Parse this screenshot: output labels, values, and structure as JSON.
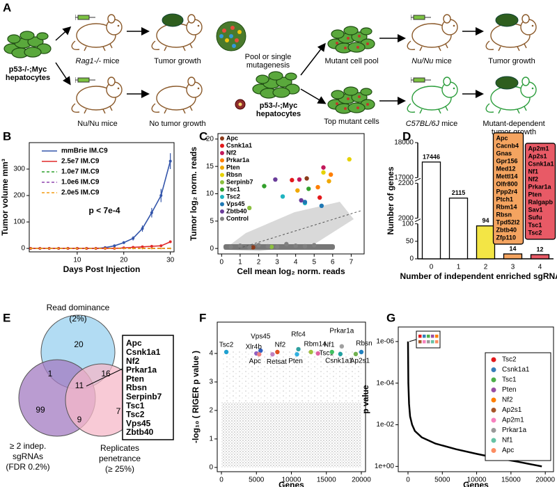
{
  "panel_a": {
    "label": "A",
    "left": {
      "cells": [
        "p53-/-;Myc",
        "hepatocytes"
      ],
      "top_mouse": {
        "strain": "Rag1-/-",
        "suffix": "mice"
      },
      "top_result": "Tumor growth",
      "bottom_mouse": "Nu/Nu mice",
      "bottom_result": "No tumor growth"
    },
    "right": {
      "cells": [
        "p53-/-;Myc",
        "hepatocytes"
      ],
      "mutagenesis": [
        "Pool or single",
        "mutagenesis"
      ],
      "pool": "Mutant cell pool",
      "pool_mouse": {
        "strain": "Nu/Nu",
        "suffix": "mice"
      },
      "pool_result": "Tumor growth",
      "top_cells": "Top mutant cells",
      "top_mouse": {
        "strain": "C57BL/6J",
        "suffix": "mice"
      },
      "top_result": [
        "Mutant-dependent",
        "tumor growth"
      ]
    }
  },
  "chart_data": [
    {
      "panel": "B",
      "type": "line",
      "xlabel": "Days Post Injection",
      "ylabel": "Tumor volume mm³",
      "xlim": [
        -0.3,
        30.8
      ],
      "xticks": [
        10,
        20,
        30
      ],
      "ylim": [
        -13,
        400
      ],
      "yticks": [
        0,
        100,
        200,
        300
      ],
      "legend": "top-left",
      "annotation": "p < 7e-4",
      "x": [
        0,
        2,
        4,
        6,
        8,
        10,
        12,
        14,
        16,
        18,
        20,
        22,
        24,
        26,
        28,
        30
      ],
      "series": [
        {
          "name": "mmBrie IM.C9",
          "color": "#3355aa",
          "dash": false,
          "values": [
            0,
            0,
            0,
            0,
            0,
            0,
            0,
            0,
            3,
            10,
            22,
            38,
            75,
            135,
            200,
            330
          ],
          "errors": [
            0,
            0,
            0,
            0,
            0,
            0,
            0,
            0,
            2,
            3,
            5,
            8,
            12,
            18,
            25,
            30
          ]
        },
        {
          "name": "2.5e7 IM.C9",
          "color": "#e02828",
          "dash": false,
          "values": [
            0,
            0,
            0,
            0,
            0,
            0,
            0,
            0,
            0,
            0,
            2,
            4,
            6,
            8,
            10,
            25
          ]
        },
        {
          "name": "1.0e7 IM.C9",
          "color": "#2ca02c",
          "dash": true,
          "values": [
            0,
            0,
            0,
            0,
            0,
            0,
            0,
            0,
            0,
            0,
            0,
            0,
            0,
            0,
            0,
            0
          ]
        },
        {
          "name": "1.0e6 IM.C9",
          "color": "#8e44ad",
          "dash": true,
          "values": [
            0,
            0,
            0,
            0,
            0,
            0,
            0,
            0,
            0,
            0,
            0,
            0,
            0,
            0,
            0,
            0
          ]
        },
        {
          "name": "2.0e5 IM.C9",
          "color": "#f39c12",
          "dash": true,
          "values": [
            0,
            0,
            0,
            0,
            0,
            0,
            0,
            0,
            0,
            0,
            0,
            0,
            0,
            0,
            0,
            0
          ]
        }
      ]
    },
    {
      "panel": "C",
      "type": "scatter",
      "xlabel": "Cell mean log₂ norm. reads",
      "ylabel": "Tumor log₂ norm. reads",
      "xlim": [
        -0.2,
        7.7
      ],
      "xticks": [
        0,
        1,
        2,
        3,
        4,
        5,
        6,
        7
      ],
      "ylim": [
        -1,
        21
      ],
      "yticks": [
        0,
        5,
        10,
        15,
        20
      ],
      "legend": "top-left",
      "series": [
        {
          "name": "Apc",
          "color": "#8c3b1a",
          "x": [
            4.6,
            1.7
          ],
          "values": [
            12.8,
            0.2
          ]
        },
        {
          "name": "Csnk1a1",
          "color": "#e31a1c",
          "x": [
            5.3,
            3.8
          ],
          "values": [
            9.3,
            12.5
          ]
        },
        {
          "name": "Nf2",
          "color": "#c2185b",
          "x": [
            4.2,
            5.5
          ],
          "values": [
            12.6,
            14.8
          ]
        },
        {
          "name": "Prkar1a",
          "color": "#ff7f00",
          "x": [
            5.2,
            5.9
          ],
          "values": [
            11.2,
            13.5
          ]
        },
        {
          "name": "Pten",
          "color": "#f0a800",
          "x": [
            5.8,
            4.1
          ],
          "values": [
            12.3,
            10.6
          ]
        },
        {
          "name": "Rbsn",
          "color": "#e6d200",
          "x": [
            6.9,
            5.5
          ],
          "values": [
            16.3,
            13.9
          ]
        },
        {
          "name": "Serpinb7",
          "color": "#8bbf3f",
          "x": [
            1.5,
            2.7
          ],
          "values": [
            7.4,
            0.3
          ]
        },
        {
          "name": "Tsc1",
          "color": "#33a02c",
          "x": [
            2.3,
            4.7
          ],
          "values": [
            11.4,
            10.9
          ]
        },
        {
          "name": "Tsc2",
          "color": "#1fb4c0",
          "x": [
            3.3,
            4.5
          ],
          "values": [
            9.5,
            8.3
          ]
        },
        {
          "name": "Vps45",
          "color": "#1f78b4",
          "x": [
            4.5,
            5.4
          ],
          "values": [
            8.5,
            7.8
          ]
        },
        {
          "name": "Zbtb40",
          "color": "#6a3d9a",
          "x": [
            2.9,
            4.3
          ],
          "values": [
            12.6,
            8.8
          ]
        },
        {
          "name": "Control",
          "color": "#808080",
          "x": [
            0.5,
            1.0,
            1.5,
            2.0,
            2.5,
            3.0,
            3.5,
            4.0,
            4.5,
            5.0
          ],
          "values": [
            0.3,
            0.5,
            0.2,
            0.6,
            0.4,
            0.3,
            0.8,
            0.5,
            0.4,
            0.6
          ]
        }
      ]
    },
    {
      "panel": "D",
      "type": "bar",
      "xlabel": "Number of independent enriched sgRNAs",
      "ylabel": "Number of genes",
      "categories": [
        "0",
        "1",
        "2",
        "3",
        "4"
      ],
      "values": [
        17446,
        2115,
        94,
        14,
        12
      ],
      "colors": [
        "#ffffff",
        "#ffffff",
        "#f3e545",
        "#f4a460",
        "#e85a66"
      ],
      "ylim_segments": [
        [
          0,
          100
        ],
        [
          2000,
          2200
        ],
        [
          17000,
          18000
        ]
      ],
      "yticks": [
        0,
        50,
        100,
        2000,
        2200,
        17000,
        18000
      ],
      "gene_lists": [
        null,
        null,
        null,
        [
          "Apc",
          "Cacnb4",
          "Gnas",
          "Gpr156",
          "Med12",
          "Mettl14",
          "Olfr800",
          "Ppp2r4",
          "Ptch1",
          "Rbm14",
          "Rbsn",
          "Tpd52l2",
          "Zbtb40",
          "Zfp110"
        ],
        [
          "Ap2m1",
          "Ap2s1",
          "Csnk1a1",
          "Nf1",
          "Nf2",
          "Prkar1a",
          "Pten",
          "Ralgapb",
          "Sav1",
          "Sufu",
          "Tsc1",
          "Tsc2"
        ]
      ]
    },
    {
      "panel": "F",
      "type": "scatter",
      "xlabel": "Genes",
      "ylabel": "-log₁₀ ( RIGER p value )",
      "xlim": [
        -600,
        20600
      ],
      "xticks": [
        0,
        5000,
        10000,
        15000,
        20000
      ],
      "ylim": [
        -0.15,
        5.1
      ],
      "yticks": [
        0,
        1,
        2,
        3,
        4
      ],
      "labels": [
        "Tsc2",
        "Vps45",
        "Xlr4b",
        "Apc",
        "Retsat",
        "Nf2",
        "Rfc4",
        "Rbm14",
        "Pten",
        "Tsc1",
        "Nf1",
        "Prkar1a",
        "Csnk1a1",
        "Rbsn",
        "Ap2s1"
      ],
      "x": [
        700,
        5600,
        5000,
        5400,
        7300,
        8000,
        11000,
        12800,
        10800,
        13800,
        15800,
        17200,
        17000,
        20000,
        19200
      ],
      "values": [
        4.05,
        4.1,
        4.0,
        3.97,
        3.97,
        4.05,
        4.15,
        4.05,
        3.97,
        4.0,
        4.05,
        4.25,
        3.98,
        4.05,
        3.98
      ],
      "colors": [
        "#1fa0d0",
        "#3060c0",
        "#9060c0",
        "#f08080",
        "#c080c0",
        "#e05020",
        "#30a0a0",
        "#a0c040",
        "#30b0e0",
        "#e060a0",
        "#40c060",
        "#a0a0a0",
        "#20a0a0",
        "#2080c0",
        "#70b050"
      ]
    },
    {
      "panel": "G",
      "type": "line",
      "xlabel": "Genes",
      "ylabel": "p value",
      "log_y": true,
      "y_reversed": true,
      "xlim": [
        -1420,
        21200
      ],
      "xticks": [
        0,
        5000,
        10000,
        15000,
        20000
      ],
      "ylim": [
        2e-07,
        1.8
      ],
      "yticks": [
        {
          "value": 1e-06,
          "label": "1e-06"
        },
        {
          "value": 0.0001,
          "label": "1e-04"
        },
        {
          "value": 0.01,
          "label": "1e-02"
        },
        {
          "value": 1,
          "label": "1e+00"
        }
      ],
      "x": [
        0,
        50,
        150,
        300,
        600,
        1000,
        2000,
        4000,
        7000,
        10000,
        13000,
        16000,
        19500
      ],
      "values": [
        1e-06,
        0.0001,
        0.001,
        0.004,
        0.01,
        0.02,
        0.04,
        0.08,
        0.15,
        0.25,
        0.4,
        0.6,
        1
      ],
      "color": "#000000",
      "legend": "bottom-right",
      "legend_items": [
        {
          "name": "Tsc2",
          "color": "#e31a1c"
        },
        {
          "name": "Csnk1a1",
          "color": "#377eb8"
        },
        {
          "name": "Tsc1",
          "color": "#4daf4a"
        },
        {
          "name": "Pten",
          "color": "#984ea3"
        },
        {
          "name": "Nf2",
          "color": "#ff7f00"
        },
        {
          "name": "Ap2s1",
          "color": "#a65628"
        },
        {
          "name": "Ap2m1",
          "color": "#f781bf"
        },
        {
          "name": "Prkar1a",
          "color": "#999999"
        },
        {
          "name": "Nf1",
          "color": "#66c2a5"
        },
        {
          "name": "Apc",
          "color": "#fc8d62"
        }
      ]
    }
  ],
  "panel_e": {
    "label": "E",
    "sets": [
      [
        "Read dominance",
        "(2%)"
      ],
      [
        "≥ 2 indep.",
        "sgRNAs",
        "(FDR 0.2%)"
      ],
      [
        "Replicates",
        "penetrance",
        "(≥ 25%)"
      ]
    ],
    "regions": {
      "read_only": 20,
      "read_sgrna": 1,
      "read_replicate": 16,
      "all": 11,
      "sgrna_only": 99,
      "sgrna_replicate": 9,
      "replicate_only": 7
    },
    "genes": [
      "Apc",
      "Csnk1a1",
      "Nf2",
      "Prkar1a",
      "Pten",
      "Rbsn",
      "Serpinb7",
      "Tsc1",
      "Tsc2",
      "Vps45",
      "Zbtb40"
    ]
  }
}
